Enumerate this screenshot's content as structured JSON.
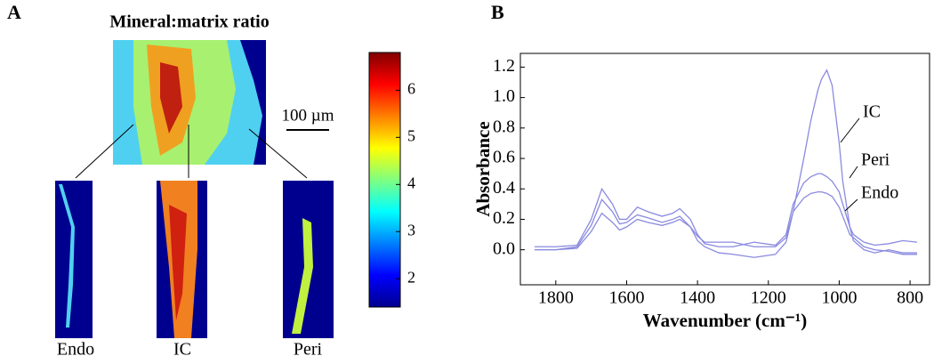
{
  "chart_data": [
    {
      "type": "heatmap",
      "panel": "A",
      "title": "Mineral:matrix ratio",
      "scale_bar": "100 µm",
      "regions": [
        "Endo",
        "IC",
        "Peri"
      ],
      "ylim": [
        1.4,
        6.8
      ],
      "yticks": [
        2,
        3,
        4,
        5,
        6
      ]
    },
    {
      "type": "line",
      "panel": "B",
      "xlabel": "Wavenumber (cm⁻¹)",
      "ylabel": "Absorbance",
      "xlim": [
        1900,
        745
      ],
      "xticks": [
        1800,
        1600,
        1400,
        1200,
        1000,
        800
      ],
      "ylim": [
        -0.23,
        1.29
      ],
      "yticks": [
        {
          "value": 0,
          "label": "0.0"
        },
        0.2,
        0.4,
        0.6,
        0.8,
        {
          "value": 1,
          "label": "1.0"
        },
        1.2
      ],
      "x": [
        1860,
        1800,
        1740,
        1700,
        1670,
        1640,
        1620,
        1600,
        1570,
        1540,
        1500,
        1470,
        1450,
        1420,
        1400,
        1380,
        1340,
        1300,
        1240,
        1180,
        1150,
        1130,
        1100,
        1080,
        1060,
        1050,
        1035,
        1020,
        1000,
        990,
        970,
        960,
        930,
        900,
        860,
        820,
        780
      ],
      "series": [
        {
          "name": "IC",
          "color": "#8a8ae0",
          "values": [
            0.0,
            0.0,
            0.01,
            0.12,
            0.24,
            0.18,
            0.13,
            0.15,
            0.2,
            0.18,
            0.16,
            0.18,
            0.2,
            0.15,
            0.06,
            0.02,
            -0.02,
            -0.03,
            -0.05,
            -0.03,
            0.05,
            0.25,
            0.6,
            0.85,
            1.05,
            1.12,
            1.18,
            1.08,
            0.7,
            0.45,
            0.15,
            0.06,
            0.0,
            -0.02,
            0.0,
            -0.02,
            -0.02
          ]
        },
        {
          "name": "Peri",
          "color": "#8a8ae0",
          "values": [
            0.02,
            0.02,
            0.03,
            0.2,
            0.4,
            0.3,
            0.2,
            0.2,
            0.28,
            0.25,
            0.22,
            0.24,
            0.27,
            0.2,
            0.1,
            0.04,
            0.02,
            0.02,
            0.05,
            0.03,
            0.1,
            0.3,
            0.44,
            0.48,
            0.5,
            0.5,
            0.48,
            0.45,
            0.38,
            0.3,
            0.15,
            0.1,
            0.05,
            0.03,
            0.04,
            0.06,
            0.05
          ]
        },
        {
          "name": "Endo",
          "color": "#8a8ae0",
          "values": [
            0.0,
            0.0,
            0.02,
            0.16,
            0.33,
            0.25,
            0.17,
            0.18,
            0.23,
            0.21,
            0.18,
            0.2,
            0.22,
            0.15,
            0.09,
            0.05,
            0.05,
            0.05,
            0.02,
            0.02,
            0.08,
            0.25,
            0.34,
            0.37,
            0.38,
            0.38,
            0.37,
            0.35,
            0.28,
            0.22,
            0.1,
            0.08,
            0.02,
            0.0,
            -0.01,
            -0.03,
            -0.03
          ]
        }
      ]
    }
  ]
}
